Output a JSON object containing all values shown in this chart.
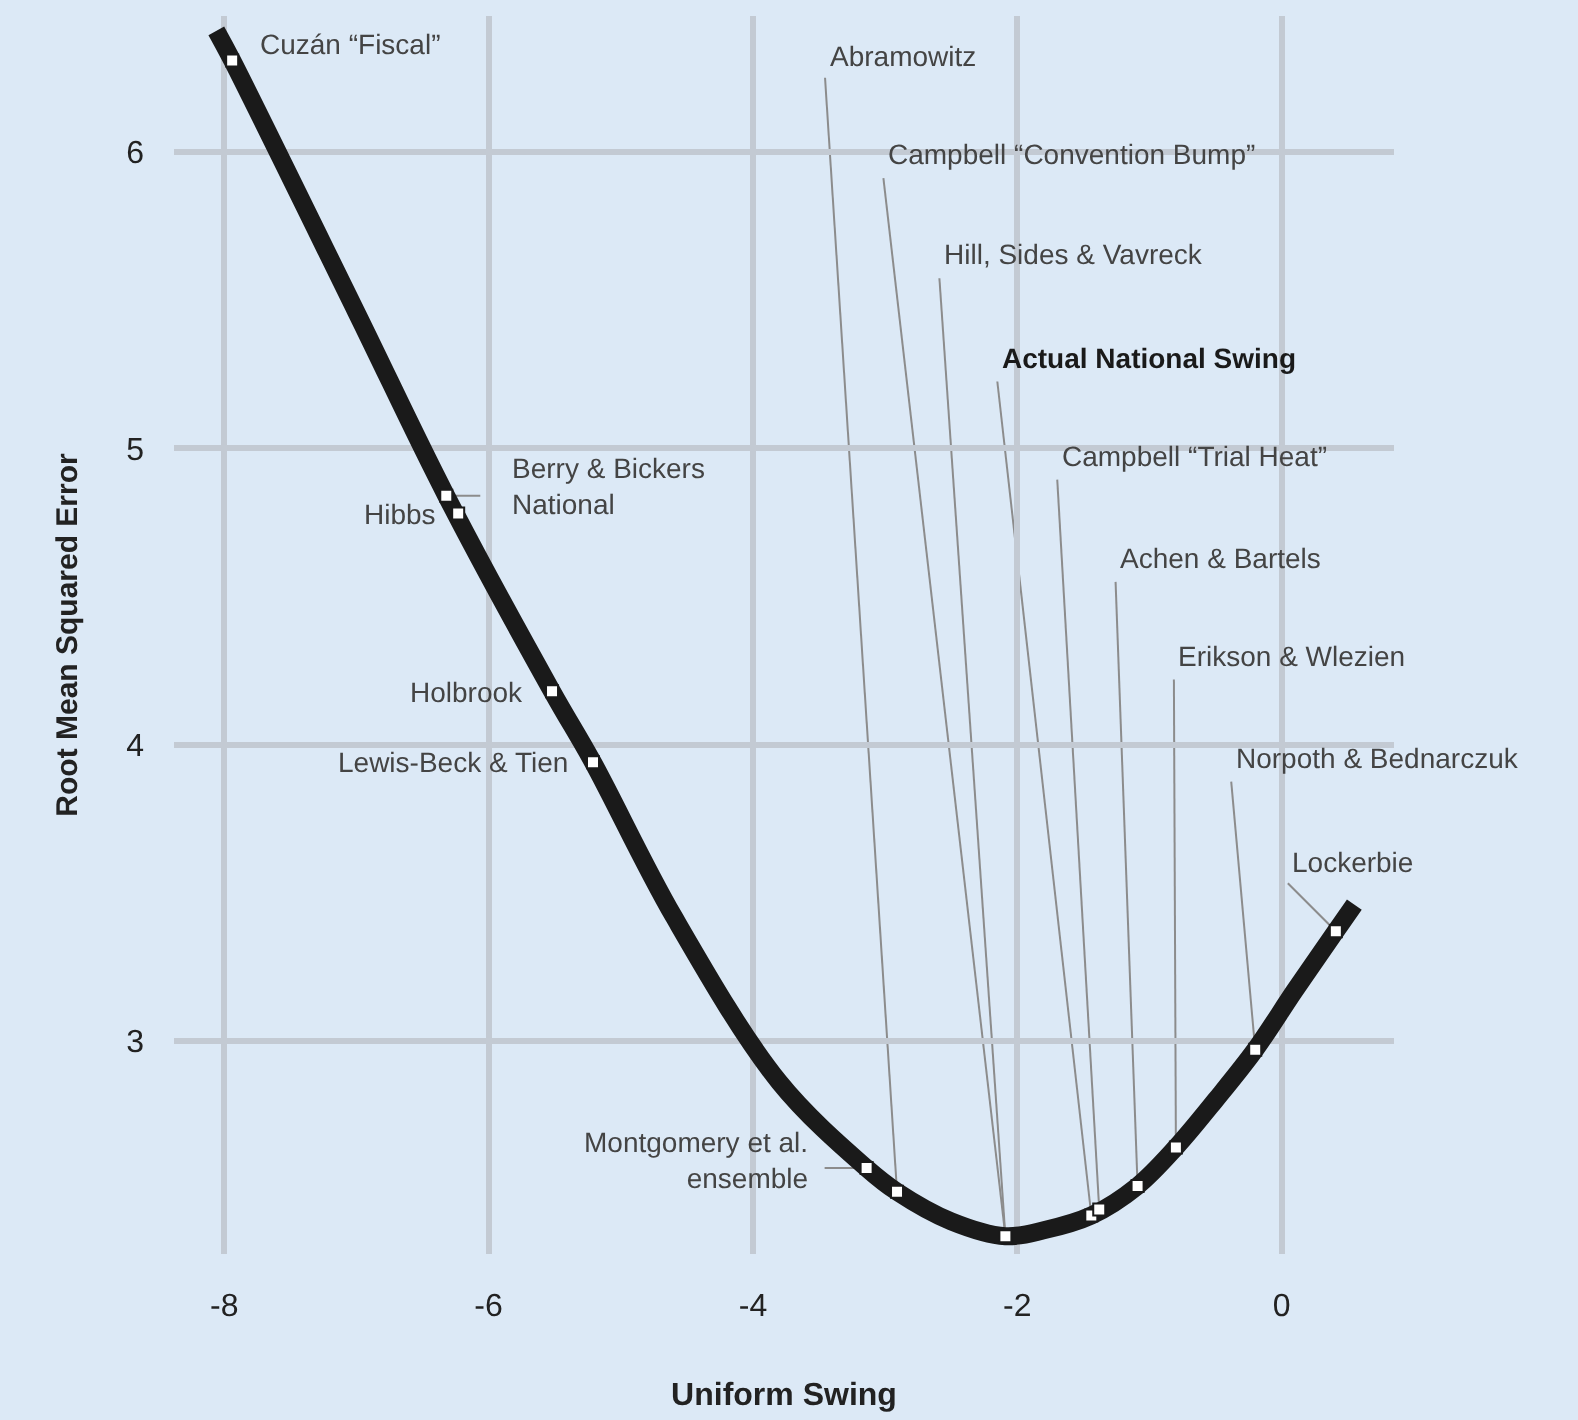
{
  "chart_data": {
    "type": "line",
    "xlabel": "Uniform Swing",
    "ylabel": "Root Mean Squared Error",
    "xlim": [
      -8.38,
      0.85
    ],
    "ylim": [
      2.28,
      6.46
    ],
    "xticks": [
      -8,
      -6,
      -4,
      -2,
      0
    ],
    "yticks": [
      3,
      4,
      5,
      6
    ],
    "grid": true,
    "series": [
      {
        "color": "#1a1a1a",
        "marker": "none",
        "line_style": "solid",
        "x": [
          -8.06,
          -7.94,
          -7,
          -6.32,
          -5.52,
          -5.21,
          -4.6,
          -3.8,
          -3.14,
          -2.91,
          -2.5,
          -2.09,
          -1.8,
          -1.44,
          -1.09,
          -0.8,
          -0.5,
          -0.2,
          0.1,
          0.41,
          0.55
        ],
        "values": [
          6.41,
          6.31,
          5.46,
          4.84,
          4.18,
          3.94,
          3.42,
          2.86,
          2.57,
          2.49,
          2.39,
          2.34,
          2.36,
          2.41,
          2.51,
          2.64,
          2.8,
          2.97,
          3.17,
          3.37,
          3.46
        ]
      },
      {
        "type": "scatter",
        "color": "#ffffff",
        "marker": "square",
        "x": [
          -7.94,
          -6.32,
          -6.23,
          -5.52,
          -5.21,
          -3.14,
          -2.91,
          -2.09,
          -1.44,
          -1.38,
          -1.09,
          -0.8,
          -0.2,
          0.41
        ],
        "values": [
          6.31,
          4.84,
          4.78,
          4.18,
          3.94,
          2.57,
          2.49,
          2.34,
          2.41,
          2.43,
          2.51,
          2.64,
          2.97,
          3.37
        ]
      }
    ],
    "annotations": [
      {
        "text": "Cuzán “Fiscal”",
        "x": -7.94,
        "y": 6.31
      },
      {
        "text": "Berry & Bickers\nNational",
        "x": -6.32,
        "y": 4.84
      },
      {
        "text": "Hibbs",
        "x": -6.23,
        "y": 4.78
      },
      {
        "text": "Holbrook",
        "x": -5.52,
        "y": 4.18
      },
      {
        "text": "Lewis-Beck & Tien",
        "x": -5.21,
        "y": 3.94
      },
      {
        "text": "Montgomery et al.\nensemble",
        "x": -3.14,
        "y": 2.57
      },
      {
        "text": "Abramowitz",
        "x": -2.91,
        "y": 2.49
      },
      {
        "text": "Campbell “Convention Bump”",
        "x": -2.09,
        "y": 2.34
      },
      {
        "text": "Hill, Sides & Vavreck",
        "x": -2.09,
        "y": 2.34
      },
      {
        "text": "Actual National Swing",
        "x": -1.44,
        "y": 2.41
      },
      {
        "text": "Campbell “Trial Heat”",
        "x": -1.38,
        "y": 2.43
      },
      {
        "text": "Achen & Bartels",
        "x": -1.09,
        "y": 2.51
      },
      {
        "text": "Erikson & Wlezien",
        "x": -0.8,
        "y": 2.64
      },
      {
        "text": "Norpoth & Bednarczuk",
        "x": -0.2,
        "y": 2.97
      },
      {
        "text": "Lockerbie",
        "x": 0.41,
        "y": 3.37
      }
    ]
  }
}
